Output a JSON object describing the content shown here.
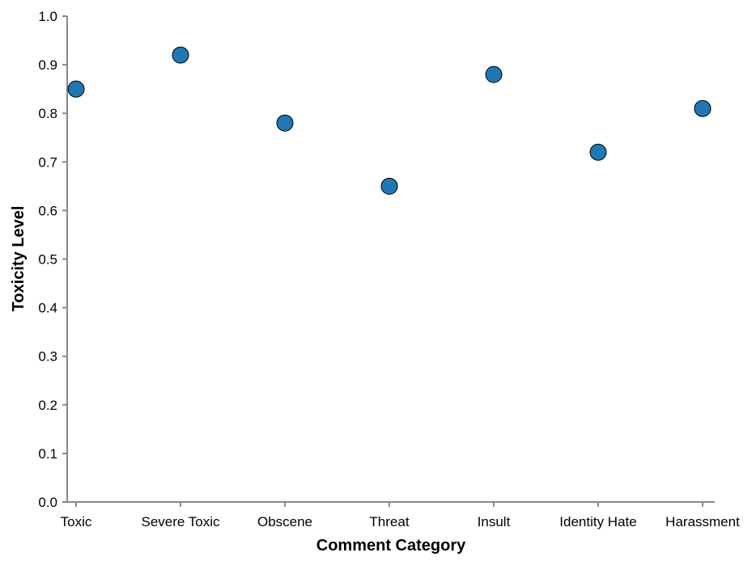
{
  "chart_data": {
    "type": "scatter",
    "categories": [
      "Toxic",
      "Severe Toxic",
      "Obscene",
      "Threat",
      "Insult",
      "Identity Hate",
      "Harassment"
    ],
    "values": [
      0.85,
      0.92,
      0.78,
      0.65,
      0.88,
      0.72,
      0.81
    ],
    "xlabel": "Comment Category",
    "ylabel": "Toxicity Level",
    "ylim": [
      0,
      1
    ],
    "yticks": [
      "0.0",
      "0.1",
      "0.2",
      "0.3",
      "0.4",
      "0.5",
      "0.6",
      "0.7",
      "0.8",
      "0.9",
      "1.0"
    ],
    "grid": false,
    "colors": {
      "point_fill": "#1f77b4",
      "point_stroke": "#000000",
      "axis": "#888888"
    }
  }
}
